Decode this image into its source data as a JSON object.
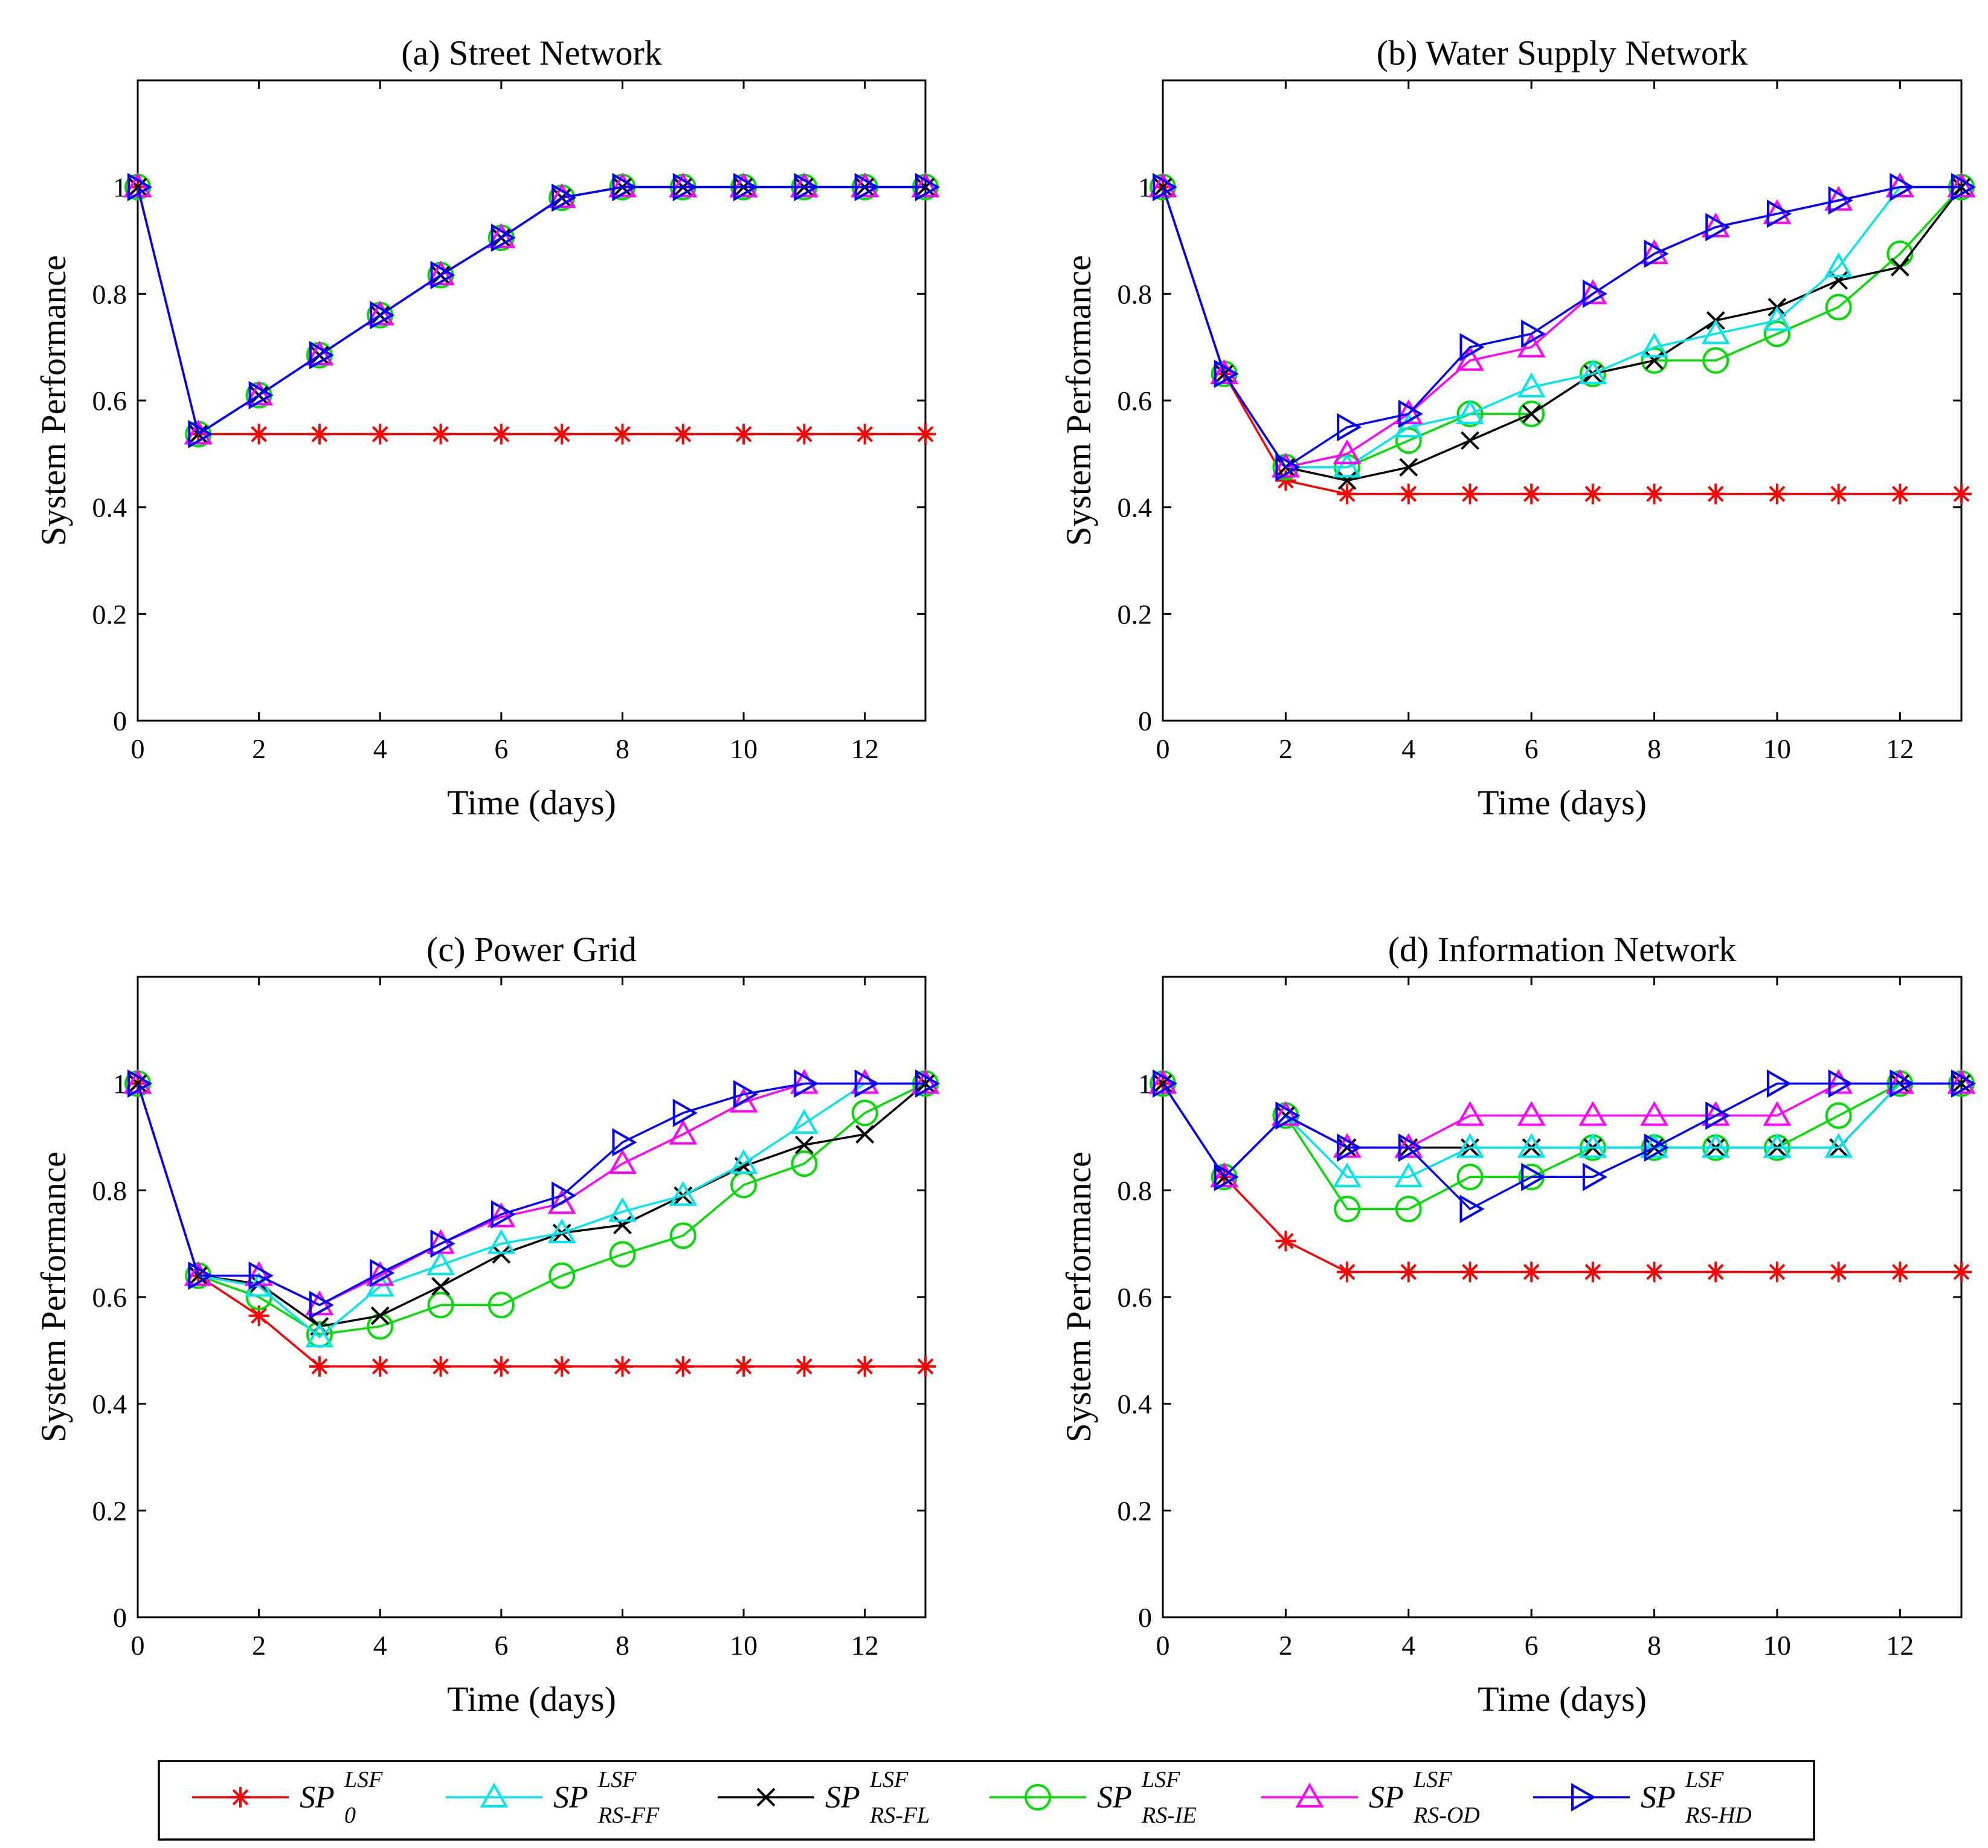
{
  "legend": [
    {
      "key": "sp0",
      "label": "SP",
      "sup": "LSF",
      "sub": "0"
    },
    {
      "key": "rsff",
      "label": "SP",
      "sup": "LSF",
      "sub": "RS-FF"
    },
    {
      "key": "rsfl",
      "label": "SP",
      "sup": "LSF",
      "sub": "RS-FL"
    },
    {
      "key": "rsie",
      "label": "SP",
      "sup": "LSF",
      "sub": "RS-IE"
    },
    {
      "key": "rsod",
      "label": "SP",
      "sup": "LSF",
      "sub": "RS-OD"
    },
    {
      "key": "rshd",
      "label": "SP",
      "sup": "LSF",
      "sub": "RS-HD"
    }
  ],
  "series_style": {
    "sp0": {
      "color": "#ff0000",
      "marker": "star"
    },
    "rsff": {
      "color": "#00e5ee",
      "marker": "triangle-up"
    },
    "rsfl": {
      "color": "#000000",
      "marker": "x"
    },
    "rsie": {
      "color": "#00dd00",
      "marker": "circle"
    },
    "rsod": {
      "color": "#ff00ff",
      "marker": "triangle-up"
    },
    "rshd": {
      "color": "#0000ff",
      "marker": "triangle-right"
    }
  },
  "chart_data": [
    {
      "type": "line",
      "title": "(a) Street Network",
      "xlabel": "Time (days)",
      "ylabel": "System Performance",
      "xlim": [
        0,
        13
      ],
      "ylim": [
        0,
        1.2
      ],
      "xticks": [
        0,
        2,
        4,
        6,
        8,
        10,
        12
      ],
      "yticks": [
        0,
        0.2,
        0.4,
        0.6,
        0.8,
        1
      ],
      "xtick_labels": [
        "0",
        "2",
        "4",
        "6",
        "8",
        "10",
        "12"
      ],
      "ytick_labels": [
        "0",
        "0.2",
        "0.4",
        "0.6",
        "0.8",
        "1"
      ],
      "x": [
        0,
        1,
        2,
        3,
        4,
        5,
        6,
        7,
        8,
        9,
        10,
        11,
        12,
        13
      ],
      "series": [
        {
          "key": "sp0",
          "values": [
            1,
            0.537,
            0.537,
            0.537,
            0.537,
            0.537,
            0.537,
            0.537,
            0.537,
            0.537,
            0.537,
            0.537,
            0.537,
            0.537
          ]
        },
        {
          "key": "rsff",
          "values": [
            1,
            0.537,
            0.61,
            0.685,
            0.76,
            0.835,
            0.905,
            0.98,
            1,
            1,
            1,
            1,
            1,
            1
          ]
        },
        {
          "key": "rsfl",
          "values": [
            1,
            0.537,
            0.61,
            0.685,
            0.76,
            0.835,
            0.905,
            0.98,
            1,
            1,
            1,
            1,
            1,
            1
          ]
        },
        {
          "key": "rsie",
          "values": [
            1,
            0.537,
            0.61,
            0.685,
            0.76,
            0.835,
            0.905,
            0.98,
            1,
            1,
            1,
            1,
            1,
            1
          ]
        },
        {
          "key": "rsod",
          "values": [
            1,
            0.537,
            0.61,
            0.685,
            0.76,
            0.835,
            0.905,
            0.98,
            1,
            1,
            1,
            1,
            1,
            1
          ]
        },
        {
          "key": "rshd",
          "values": [
            1,
            0.537,
            0.61,
            0.685,
            0.76,
            0.835,
            0.905,
            0.98,
            1,
            1,
            1,
            1,
            1,
            1
          ]
        }
      ]
    },
    {
      "type": "line",
      "title": "(b) Water Supply Network",
      "xlabel": "Time (days)",
      "ylabel": "System Performance",
      "xlim": [
        0,
        13
      ],
      "ylim": [
        0,
        1.2
      ],
      "xticks": [
        0,
        2,
        4,
        6,
        8,
        10,
        12
      ],
      "yticks": [
        0,
        0.2,
        0.4,
        0.6,
        0.8,
        1
      ],
      "xtick_labels": [
        "0",
        "2",
        "4",
        "6",
        "8",
        "10",
        "12"
      ],
      "ytick_labels": [
        "0",
        "0.2",
        "0.4",
        "0.6",
        "0.8",
        "1"
      ],
      "x": [
        0,
        1,
        2,
        3,
        4,
        5,
        6,
        7,
        8,
        9,
        10,
        11,
        12,
        13
      ],
      "series": [
        {
          "key": "sp0",
          "values": [
            1,
            0.65,
            0.45,
            0.425,
            0.425,
            0.425,
            0.425,
            0.425,
            0.425,
            0.425,
            0.425,
            0.425,
            0.425,
            0.425
          ]
        },
        {
          "key": "rsff",
          "values": [
            1,
            0.65,
            0.475,
            0.475,
            0.55,
            0.575,
            0.625,
            0.65,
            0.7,
            0.725,
            0.75,
            0.85,
            1,
            1
          ]
        },
        {
          "key": "rsfl",
          "values": [
            1,
            0.65,
            0.475,
            0.45,
            0.475,
            0.525,
            0.575,
            0.65,
            0.675,
            0.75,
            0.775,
            0.825,
            0.85,
            1
          ]
        },
        {
          "key": "rsie",
          "values": [
            1,
            0.65,
            0.475,
            0.475,
            0.525,
            0.575,
            0.575,
            0.65,
            0.675,
            0.675,
            0.725,
            0.775,
            0.875,
            1
          ]
        },
        {
          "key": "rsod",
          "values": [
            1,
            0.65,
            0.475,
            0.5,
            0.575,
            0.675,
            0.7,
            0.8,
            0.875,
            0.925,
            0.95,
            0.975,
            1,
            1
          ]
        },
        {
          "key": "rshd",
          "values": [
            1,
            0.65,
            0.475,
            0.55,
            0.575,
            0.7,
            0.725,
            0.8,
            0.875,
            0.925,
            0.95,
            0.975,
            1,
            1
          ]
        }
      ]
    },
    {
      "type": "line",
      "title": "(c) Power Grid",
      "xlabel": "Time (days)",
      "ylabel": "System Performance",
      "xlim": [
        0,
        13
      ],
      "ylim": [
        0,
        1.2
      ],
      "xticks": [
        0,
        2,
        4,
        6,
        8,
        10,
        12
      ],
      "yticks": [
        0,
        0.2,
        0.4,
        0.6,
        0.8,
        1
      ],
      "xtick_labels": [
        "0",
        "2",
        "4",
        "6",
        "8",
        "10",
        "12"
      ],
      "ytick_labels": [
        "0",
        "0.2",
        "0.4",
        "0.6",
        "0.8",
        "1"
      ],
      "x": [
        0,
        1,
        2,
        3,
        4,
        5,
        6,
        7,
        8,
        9,
        10,
        11,
        12,
        13
      ],
      "series": [
        {
          "key": "sp0",
          "values": [
            1,
            0.64,
            0.565,
            0.47,
            0.47,
            0.47,
            0.47,
            0.47,
            0.47,
            0.47,
            0.47,
            0.47,
            0.47,
            0.47
          ]
        },
        {
          "key": "rsff",
          "values": [
            1,
            0.64,
            0.62,
            0.525,
            0.62,
            0.66,
            0.7,
            0.72,
            0.76,
            0.79,
            0.85,
            0.925,
            1,
            1
          ]
        },
        {
          "key": "rsfl",
          "values": [
            1,
            0.64,
            0.625,
            0.545,
            0.565,
            0.62,
            0.68,
            0.72,
            0.735,
            0.79,
            0.845,
            0.885,
            0.905,
            1
          ]
        },
        {
          "key": "rsie",
          "values": [
            1,
            0.64,
            0.6,
            0.53,
            0.545,
            0.585,
            0.585,
            0.64,
            0.68,
            0.715,
            0.81,
            0.85,
            0.945,
            1
          ]
        },
        {
          "key": "rsod",
          "values": [
            1,
            0.64,
            0.64,
            0.585,
            0.64,
            0.7,
            0.75,
            0.775,
            0.85,
            0.905,
            0.965,
            1,
            1,
            1
          ]
        },
        {
          "key": "rshd",
          "values": [
            1,
            0.64,
            0.64,
            0.585,
            0.645,
            0.7,
            0.755,
            0.79,
            0.89,
            0.945,
            0.98,
            1,
            1,
            1
          ]
        }
      ]
    },
    {
      "type": "line",
      "title": "(d) Information Network",
      "xlabel": "Time (days)",
      "ylabel": "System Performance",
      "xlim": [
        0,
        13
      ],
      "ylim": [
        0,
        1.2
      ],
      "xticks": [
        0,
        2,
        4,
        6,
        8,
        10,
        12
      ],
      "yticks": [
        0,
        0.2,
        0.4,
        0.6,
        0.8,
        1
      ],
      "xtick_labels": [
        "0",
        "2",
        "4",
        "6",
        "8",
        "10",
        "12"
      ],
      "ytick_labels": [
        "0",
        "0.2",
        "0.4",
        "0.6",
        "0.8",
        "1"
      ],
      "x": [
        0,
        1,
        2,
        3,
        4,
        5,
        6,
        7,
        8,
        9,
        10,
        11,
        12,
        13
      ],
      "series": [
        {
          "key": "sp0",
          "values": [
            1,
            0.825,
            0.705,
            0.647,
            0.647,
            0.647,
            0.647,
            0.647,
            0.647,
            0.647,
            0.647,
            0.647,
            0.647,
            0.647
          ]
        },
        {
          "key": "rsff",
          "values": [
            1,
            0.825,
            0.94,
            0.825,
            0.825,
            0.88,
            0.88,
            0.88,
            0.88,
            0.88,
            0.88,
            0.88,
            1,
            1
          ]
        },
        {
          "key": "rsfl",
          "values": [
            1,
            0.825,
            0.94,
            0.88,
            0.88,
            0.88,
            0.88,
            0.88,
            0.88,
            0.88,
            0.88,
            0.88,
            1,
            1
          ]
        },
        {
          "key": "rsie",
          "values": [
            1,
            0.825,
            0.94,
            0.765,
            0.765,
            0.825,
            0.825,
            0.88,
            0.88,
            0.88,
            0.88,
            0.94,
            1,
            1
          ]
        },
        {
          "key": "rsod",
          "values": [
            1,
            0.825,
            0.94,
            0.88,
            0.88,
            0.94,
            0.94,
            0.94,
            0.94,
            0.94,
            0.94,
            1,
            1,
            1
          ]
        },
        {
          "key": "rshd",
          "values": [
            1,
            0.825,
            0.94,
            0.88,
            0.88,
            0.765,
            0.825,
            0.825,
            0.88,
            0.94,
            1,
            1,
            1,
            1
          ]
        }
      ]
    }
  ]
}
